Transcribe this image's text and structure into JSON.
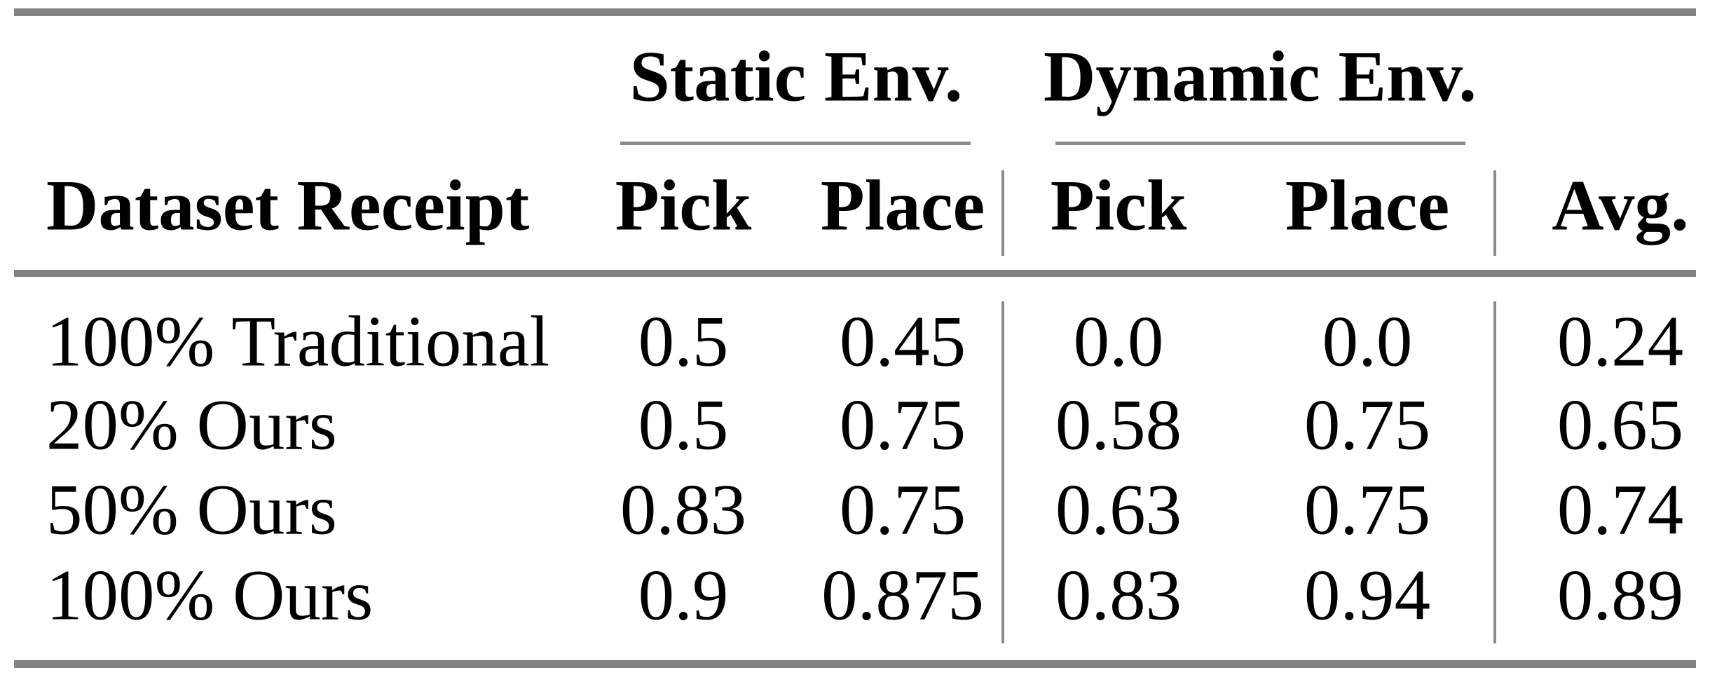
{
  "table": {
    "group_headers": [
      {
        "label": "Static Env."
      },
      {
        "label": "Dynamic Env."
      }
    ],
    "header": {
      "dataset_label": "Dataset Receipt",
      "cols": [
        "Pick",
        "Place",
        "Pick",
        "Place",
        "Avg."
      ]
    },
    "rows": [
      {
        "label": "100% Traditional",
        "values": [
          "0.5",
          "0.45",
          "0.0",
          "0.0",
          "0.24"
        ]
      },
      {
        "label": "20% Ours",
        "values": [
          "0.5",
          "0.75",
          "0.58",
          "0.75",
          "0.65"
        ]
      },
      {
        "label": "50% Ours",
        "values": [
          "0.83",
          "0.75",
          "0.63",
          "0.75",
          "0.74"
        ]
      },
      {
        "label": "100% Ours",
        "values": [
          "0.9",
          "0.875",
          "0.83",
          "0.94",
          "0.89"
        ]
      }
    ]
  },
  "colors": {
    "rule_gray": "#828282",
    "text": "#000000",
    "background": "#ffffff"
  },
  "chart_data": {
    "type": "table",
    "column_groups": [
      {
        "label": "Static Env.",
        "columns": [
          "Pick",
          "Place"
        ]
      },
      {
        "label": "Dynamic Env.",
        "columns": [
          "Pick",
          "Place"
        ]
      }
    ],
    "columns": [
      "Dataset Receipt",
      "Static Pick",
      "Static Place",
      "Dynamic Pick",
      "Dynamic Place",
      "Avg."
    ],
    "rows": [
      [
        "100% Traditional",
        0.5,
        0.45,
        0.0,
        0.0,
        0.24
      ],
      [
        "20% Ours",
        0.5,
        0.75,
        0.58,
        0.75,
        0.65
      ],
      [
        "50% Ours",
        0.83,
        0.75,
        0.63,
        0.75,
        0.74
      ],
      [
        "100% Ours",
        0.9,
        0.875,
        0.83,
        0.94,
        0.89
      ]
    ]
  }
}
